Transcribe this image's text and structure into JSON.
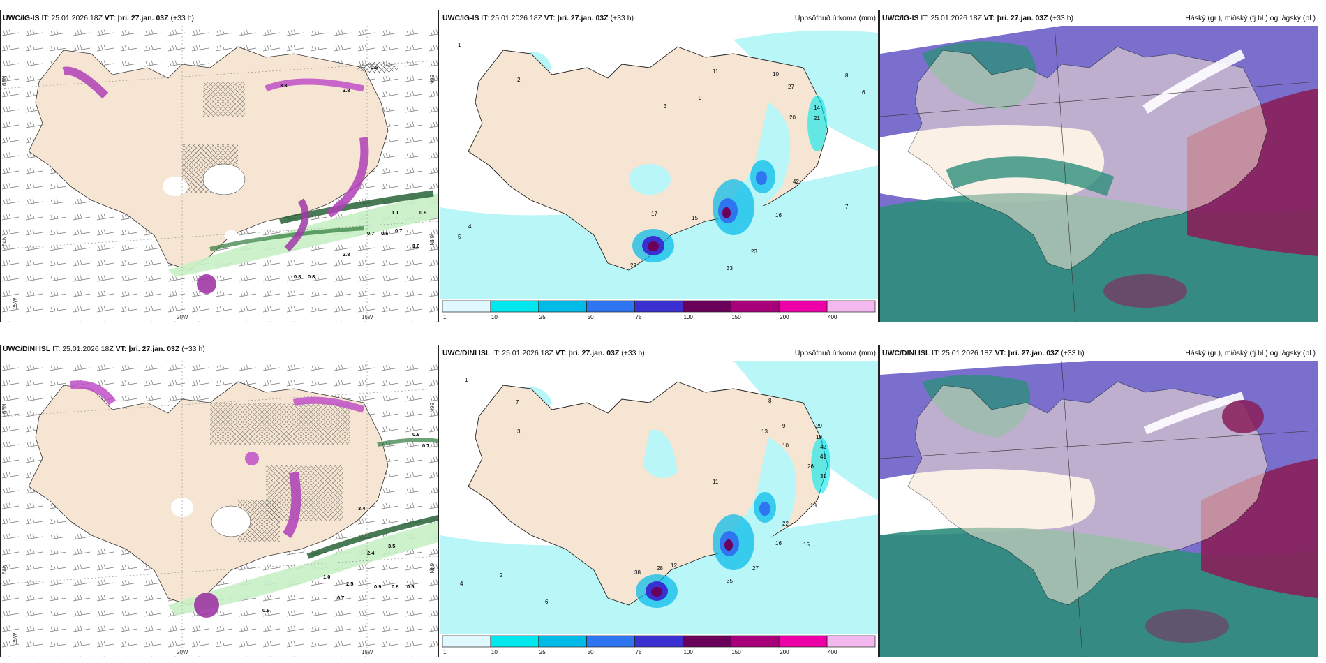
{
  "panels": [
    {
      "id": "p1",
      "model": "UWC/IG-IS",
      "run_label": "IT:",
      "run": "25.01.2026 18Z",
      "valid_label": "VT:",
      "valid": "þri. 27.jan. 03Z",
      "lead": "(+33 h)",
      "title_right": ""
    },
    {
      "id": "p2",
      "model": "UWC/IG-IS",
      "run_label": "IT:",
      "run": "25.01.2026 18Z",
      "valid_label": "VT:",
      "valid": "þri. 27.jan. 03Z",
      "lead": "(+33 h)",
      "title_right": "Uppsöfnuð úrkoma (mm)"
    },
    {
      "id": "p3",
      "model": "UWC/IG-IS",
      "run_label": "IT:",
      "run": "25.01.2026 18Z",
      "valid_label": "VT:",
      "valid": "þri. 27.jan. 03Z",
      "lead": "(+33 h)",
      "title_right": "Háský (gr.), miðský (fj.bl.) og lágský (bl.)"
    },
    {
      "id": "p4",
      "model": "UWC/DINI ISL",
      "run_label": "IT:",
      "run": "25.01.2026 18Z",
      "valid_label": "VT:",
      "valid": "þri. 27.jan. 03Z",
      "lead": "(+33 h)",
      "title_right": ""
    },
    {
      "id": "p5",
      "model": "UWC/DINI ISL",
      "run_label": "IT:",
      "run": "25.01.2026 18Z",
      "valid_label": "VT:",
      "valid": "þri. 27.jan. 03Z",
      "lead": "(+33 h)",
      "title_right": "Uppsöfnuð úrkoma (mm)"
    },
    {
      "id": "p6",
      "model": "UWC/DINI ISL",
      "run_label": "IT:",
      "run": "25.01.2026 18Z",
      "valid_label": "VT:",
      "valid": "þri. 27.jan. 03Z",
      "lead": "(+33 h)",
      "title_right": "Háský (gr.), miðský (fj.bl.) og lágský (bl.)"
    }
  ],
  "axis_labels": {
    "lat_n": "66N",
    "lat_s": "64N",
    "lon_w1": "20W",
    "lon_w2": "15W",
    "lon_w3": "25W"
  },
  "colorbar": {
    "ticks": [
      "1",
      "10",
      "25",
      "50",
      "75",
      "100",
      "150",
      "200",
      "400"
    ],
    "colors": [
      "#dff9ff",
      "#00e8ee",
      "#00bbe8",
      "#2f74f0",
      "#3a2fd0",
      "#6a005a",
      "#a8007a",
      "#ee00a8",
      "#f3b8ee"
    ]
  },
  "colors": {
    "land": "#f6e5d2",
    "sea": "#ffffff",
    "precip_light": "#b8f6f8",
    "cloud_high": "#6b5fc8",
    "cloud_mid": "#2e8e7c",
    "cloud_low": "#8a1f5a"
  },
  "precip_points_top": [
    {
      "v": "1"
    },
    {
      "v": "2"
    },
    {
      "v": "3"
    },
    {
      "v": "4"
    },
    {
      "v": "5"
    },
    {
      "v": "6"
    },
    {
      "v": "7"
    },
    {
      "v": "8"
    },
    {
      "v": "9"
    },
    {
      "v": "10"
    },
    {
      "v": "11"
    },
    {
      "v": "14"
    },
    {
      "v": "15"
    },
    {
      "v": "16"
    },
    {
      "v": "17"
    },
    {
      "v": "20"
    },
    {
      "v": "21"
    },
    {
      "v": "23"
    },
    {
      "v": "27"
    },
    {
      "v": "29"
    },
    {
      "v": "33"
    },
    {
      "v": "42"
    }
  ],
  "precip_points_bottom": [
    {
      "v": "1"
    },
    {
      "v": "2"
    },
    {
      "v": "3"
    },
    {
      "v": "4"
    },
    {
      "v": "6"
    },
    {
      "v": "7"
    },
    {
      "v": "8"
    },
    {
      "v": "9"
    },
    {
      "v": "10"
    },
    {
      "v": "11"
    },
    {
      "v": "12"
    },
    {
      "v": "13"
    },
    {
      "v": "15"
    },
    {
      "v": "16"
    },
    {
      "v": "18"
    },
    {
      "v": "19"
    },
    {
      "v": "22"
    },
    {
      "v": "26"
    },
    {
      "v": "27"
    },
    {
      "v": "28"
    },
    {
      "v": "29"
    },
    {
      "v": "31"
    },
    {
      "v": "35"
    },
    {
      "v": "38"
    },
    {
      "v": "41"
    },
    {
      "v": "42"
    }
  ],
  "wind_labels_top": [
    "0.5",
    "0.7",
    "0.6",
    "0.7",
    "0.9",
    "1.1",
    "1.0",
    "0.8",
    "0.3",
    "3.3",
    "3.8",
    "2.8"
  ],
  "wind_labels_bottom": [
    "0.6",
    "0.7",
    "0.9",
    "0.8",
    "0.5",
    "1.0",
    "0.7",
    "2.5",
    "2.4",
    "3.5",
    "3.4",
    "0.6"
  ]
}
